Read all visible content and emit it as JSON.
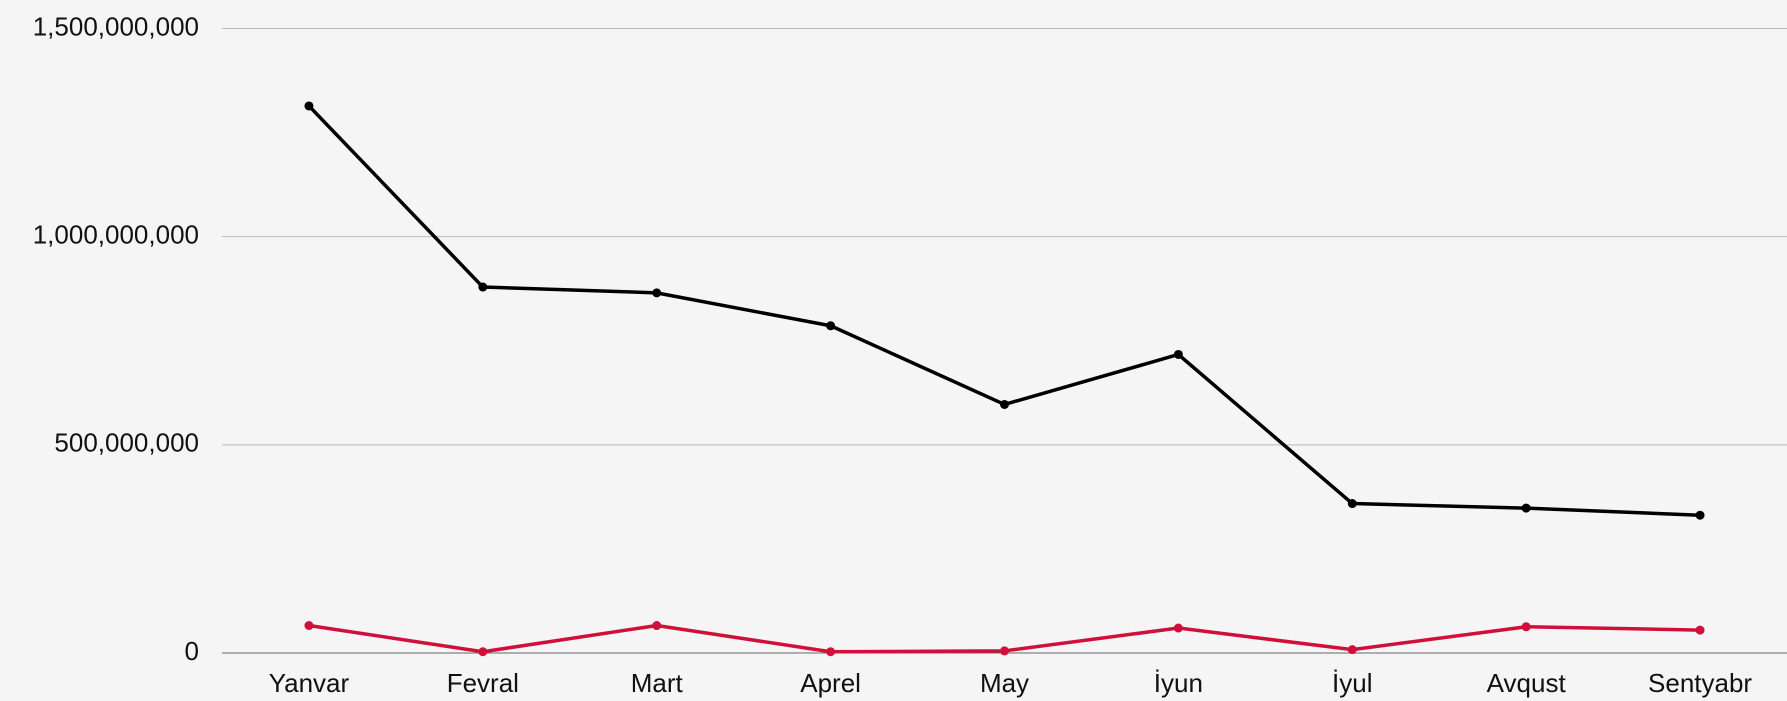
{
  "chart_data": {
    "type": "line",
    "categories": [
      "Yanvar",
      "Fevral",
      "Mart",
      "Aprel",
      "May",
      "İyun",
      "İyul",
      "Avqust",
      "Sentyabr"
    ],
    "series": [
      {
        "color": "#000000",
        "values": [
          1314000000,
          879000000,
          865000000,
          786000000,
          597000000,
          717000000,
          359000000,
          348000000,
          331000000
        ]
      },
      {
        "color": "#d0103a",
        "values": [
          66000000,
          3000000,
          66000000,
          3000000,
          5000000,
          60000000,
          8000000,
          63000000,
          55000000
        ]
      }
    ],
    "ylim": [
      0,
      1500000000
    ],
    "yticks": [
      0,
      {
        "value": 500000000,
        "label": "500,000,000"
      },
      {
        "value": 1000000000,
        "label": "1,000,000,000"
      },
      {
        "value": 1500000000,
        "label": "1,500,000,000"
      }
    ],
    "grid": true
  }
}
